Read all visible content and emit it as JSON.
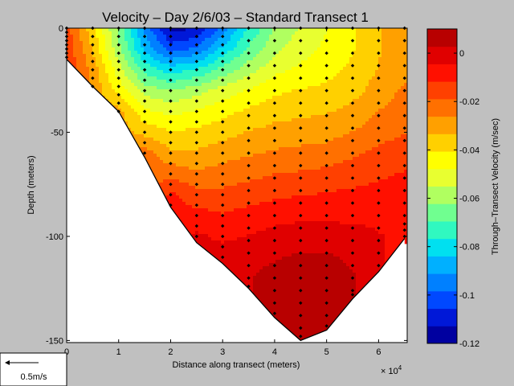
{
  "chart_data": {
    "type": "contour",
    "title": "Velocity – Day 2/6/03 – Standard Transect 1",
    "xlabel": "Distance along transect (meters)",
    "ylabel": "Depth (meters)",
    "x_exponent_label": "× 10",
    "x_exponent_power": "4",
    "xlim": [
      0,
      65500
    ],
    "ylim": [
      -151,
      0
    ],
    "xticks": [
      0,
      1,
      2,
      3,
      4,
      5,
      6
    ],
    "yticks": [
      0,
      -50,
      -100,
      -150
    ],
    "colorbar": {
      "label": "Through–Transect Velocity (m/sec)",
      "range": [
        -0.12,
        0.01
      ],
      "ticks": [
        "0",
        "-0.02",
        "-0.04",
        "-0.06",
        "-0.08",
        "-0.1",
        "-0.12"
      ],
      "colors": [
        "#0000a0",
        "#0018d8",
        "#0048ff",
        "#0080ff",
        "#00b0ff",
        "#00e0f0",
        "#30f8c0",
        "#70ff90",
        "#b0ff60",
        "#e8ff30",
        "#ffff00",
        "#ffd000",
        "#ffa000",
        "#ff7000",
        "#ff4000",
        "#ff1000",
        "#e00000",
        "#b80000"
      ]
    },
    "bottom_profile": [
      [
        0,
        -15
      ],
      [
        5000,
        -28
      ],
      [
        10000,
        -40
      ],
      [
        15000,
        -62
      ],
      [
        20000,
        -86
      ],
      [
        25000,
        -103
      ],
      [
        30000,
        -113
      ],
      [
        35000,
        -125
      ],
      [
        40000,
        -139
      ],
      [
        45000,
        -150
      ],
      [
        50000,
        -145
      ],
      [
        55000,
        -130
      ],
      [
        60000,
        -117
      ],
      [
        65000,
        -101
      ]
    ],
    "velocity_field": {
      "x": [
        0,
        5000,
        10000,
        15000,
        20000,
        25000,
        30000,
        35000,
        40000,
        45000,
        50000,
        55000,
        60000,
        65000
      ],
      "depth": [
        0,
        10,
        20,
        30,
        40,
        50,
        60,
        70,
        80,
        90,
        100,
        110,
        120,
        130,
        140,
        150
      ],
      "velocity": [
        [
          -0.016,
          -0.038,
          -0.064,
          -0.093,
          -0.115,
          -0.113,
          -0.095,
          -0.076,
          -0.062,
          -0.054,
          -0.048,
          -0.042,
          -0.034,
          -0.028
        ],
        [
          -0.013,
          -0.034,
          -0.06,
          -0.086,
          -0.102,
          -0.097,
          -0.082,
          -0.068,
          -0.057,
          -0.051,
          -0.046,
          -0.041,
          -0.034,
          -0.029
        ],
        [
          null,
          -0.028,
          -0.052,
          -0.072,
          -0.08,
          -0.076,
          -0.067,
          -0.058,
          -0.05,
          -0.046,
          -0.043,
          -0.039,
          -0.033,
          -0.028
        ],
        [
          null,
          null,
          -0.043,
          -0.058,
          -0.062,
          -0.058,
          -0.052,
          -0.047,
          -0.042,
          -0.04,
          -0.039,
          -0.036,
          -0.03,
          -0.025
        ],
        [
          null,
          null,
          -0.03,
          -0.046,
          -0.05,
          -0.047,
          -0.043,
          -0.039,
          -0.036,
          -0.035,
          -0.034,
          -0.031,
          -0.026,
          -0.022
        ],
        [
          null,
          null,
          null,
          -0.036,
          -0.04,
          -0.039,
          -0.036,
          -0.033,
          -0.031,
          -0.03,
          -0.029,
          -0.026,
          -0.022,
          -0.019
        ],
        [
          null,
          null,
          null,
          -0.022,
          -0.032,
          -0.032,
          -0.029,
          -0.027,
          -0.025,
          -0.024,
          -0.023,
          -0.02,
          -0.017,
          -0.015
        ],
        [
          null,
          null,
          null,
          null,
          -0.021,
          -0.025,
          -0.023,
          -0.021,
          -0.019,
          -0.018,
          -0.017,
          -0.015,
          -0.013,
          -0.011
        ],
        [
          null,
          null,
          null,
          null,
          -0.01,
          -0.016,
          -0.017,
          -0.015,
          -0.013,
          -0.012,
          -0.011,
          -0.01,
          -0.009,
          -0.008
        ],
        [
          null,
          null,
          null,
          null,
          null,
          -0.009,
          -0.011,
          -0.009,
          -0.007,
          -0.006,
          -0.006,
          -0.006,
          -0.006,
          -0.006
        ],
        [
          null,
          null,
          null,
          null,
          null,
          -0.003,
          -0.006,
          -0.004,
          -0.002,
          -0.001,
          -0.001,
          -0.002,
          -0.004,
          null
        ],
        [
          null,
          null,
          null,
          null,
          null,
          null,
          -0.001,
          0.0,
          0.002,
          0.004,
          0.004,
          0.001,
          null,
          null
        ],
        [
          null,
          null,
          null,
          null,
          null,
          null,
          null,
          0.002,
          0.006,
          0.008,
          0.008,
          0.004,
          null,
          null
        ],
        [
          null,
          null,
          null,
          null,
          null,
          null,
          null,
          null,
          0.008,
          0.01,
          0.009,
          null,
          null,
          null
        ],
        [
          null,
          null,
          null,
          null,
          null,
          null,
          null,
          null,
          null,
          0.011,
          0.008,
          null,
          null,
          null
        ],
        [
          null,
          null,
          null,
          null,
          null,
          null,
          null,
          null,
          null,
          0.009,
          null,
          null,
          null,
          null
        ]
      ]
    },
    "stations": [
      {
        "x": 0,
        "depths": [
          0,
          2,
          4,
          6,
          8,
          10,
          12,
          14
        ]
      },
      {
        "x": 5000,
        "depths": [
          0,
          4,
          8,
          12,
          16,
          20,
          24,
          28
        ]
      },
      {
        "x": 10000,
        "depths": [
          0,
          4,
          8,
          12,
          16,
          20,
          24,
          28,
          32,
          36,
          40
        ]
      },
      {
        "x": 15000,
        "depths": [
          0,
          4,
          8,
          12,
          16,
          20,
          25,
          30,
          35,
          40,
          45,
          50,
          55,
          60
        ]
      },
      {
        "x": 20000,
        "depths": [
          0,
          4,
          8,
          12,
          16,
          20,
          25,
          30,
          35,
          40,
          45,
          50,
          55,
          60,
          65,
          70,
          75,
          80,
          85
        ]
      },
      {
        "x": 25000,
        "depths": [
          0,
          4,
          8,
          12,
          16,
          20,
          25,
          30,
          35,
          40,
          45,
          50,
          55,
          60,
          65,
          70,
          75,
          80,
          85,
          90,
          95,
          100
        ]
      },
      {
        "x": 30000,
        "depths": [
          0,
          4,
          8,
          12,
          16,
          20,
          25,
          30,
          35,
          40,
          45,
          50,
          55,
          60,
          65,
          70,
          75,
          80,
          85,
          90,
          95,
          100,
          105,
          110
        ]
      },
      {
        "x": 35000,
        "depths": [
          0,
          6,
          12,
          18,
          24,
          30,
          36,
          42,
          48,
          54,
          60,
          66,
          72,
          78,
          84,
          90,
          96,
          102,
          108,
          114,
          120,
          124
        ]
      },
      {
        "x": 40000,
        "depths": [
          0,
          6,
          12,
          18,
          24,
          30,
          36,
          42,
          48,
          54,
          60,
          66,
          72,
          78,
          84,
          90,
          96,
          102,
          108,
          114,
          120,
          126,
          132,
          137
        ]
      },
      {
        "x": 45000,
        "depths": [
          0,
          6,
          12,
          18,
          24,
          30,
          36,
          42,
          48,
          54,
          60,
          66,
          72,
          78,
          84,
          90,
          96,
          102,
          108,
          114,
          120,
          126,
          132,
          138,
          144,
          148
        ]
      },
      {
        "x": 50000,
        "depths": [
          0,
          6,
          12,
          18,
          24,
          30,
          36,
          42,
          48,
          54,
          60,
          66,
          72,
          78,
          84,
          90,
          96,
          102,
          108,
          114,
          120,
          126,
          132,
          138,
          143
        ]
      },
      {
        "x": 55000,
        "depths": [
          0,
          6,
          12,
          18,
          24,
          30,
          36,
          42,
          48,
          54,
          60,
          66,
          72,
          78,
          84,
          90,
          96,
          102,
          108,
          114,
          120,
          126,
          128
        ]
      },
      {
        "x": 60000,
        "depths": [
          0,
          6,
          12,
          18,
          24,
          30,
          36,
          42,
          48,
          54,
          60,
          66,
          72,
          78,
          84,
          90,
          96,
          102,
          108,
          114
        ]
      },
      {
        "x": 65000,
        "depths": [
          0,
          6,
          12,
          18,
          24,
          30,
          36,
          42,
          48,
          54,
          60,
          66,
          72,
          78,
          84,
          90,
          94,
          97,
          100
        ]
      }
    ]
  },
  "scale_legend": {
    "label": "0.5m/s"
  }
}
